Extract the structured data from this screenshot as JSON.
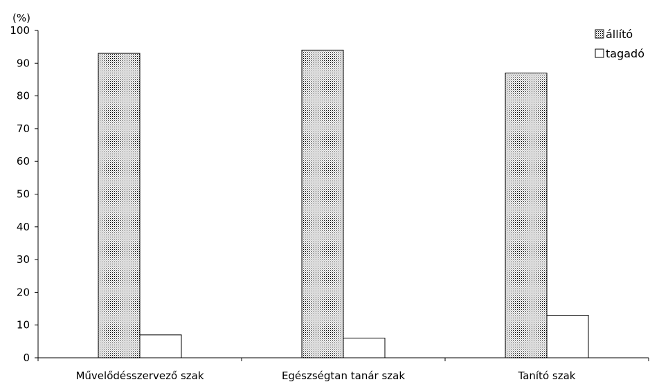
{
  "chart_data": {
    "type": "bar",
    "ylabel": "(%)",
    "ylim": [
      0,
      100
    ],
    "yticks": [
      0,
      10,
      20,
      30,
      40,
      50,
      60,
      70,
      80,
      90,
      100
    ],
    "categories": [
      "Művelődésszervező szak",
      "Egészségtan tanár szak",
      "Tanító szak"
    ],
    "series": [
      {
        "name": "állító",
        "values": [
          93,
          94,
          87
        ],
        "fill": "dotted"
      },
      {
        "name": "tagadó",
        "values": [
          7,
          6,
          13
        ],
        "fill": "white"
      }
    ],
    "legend_position": "top-right",
    "grid": false
  }
}
